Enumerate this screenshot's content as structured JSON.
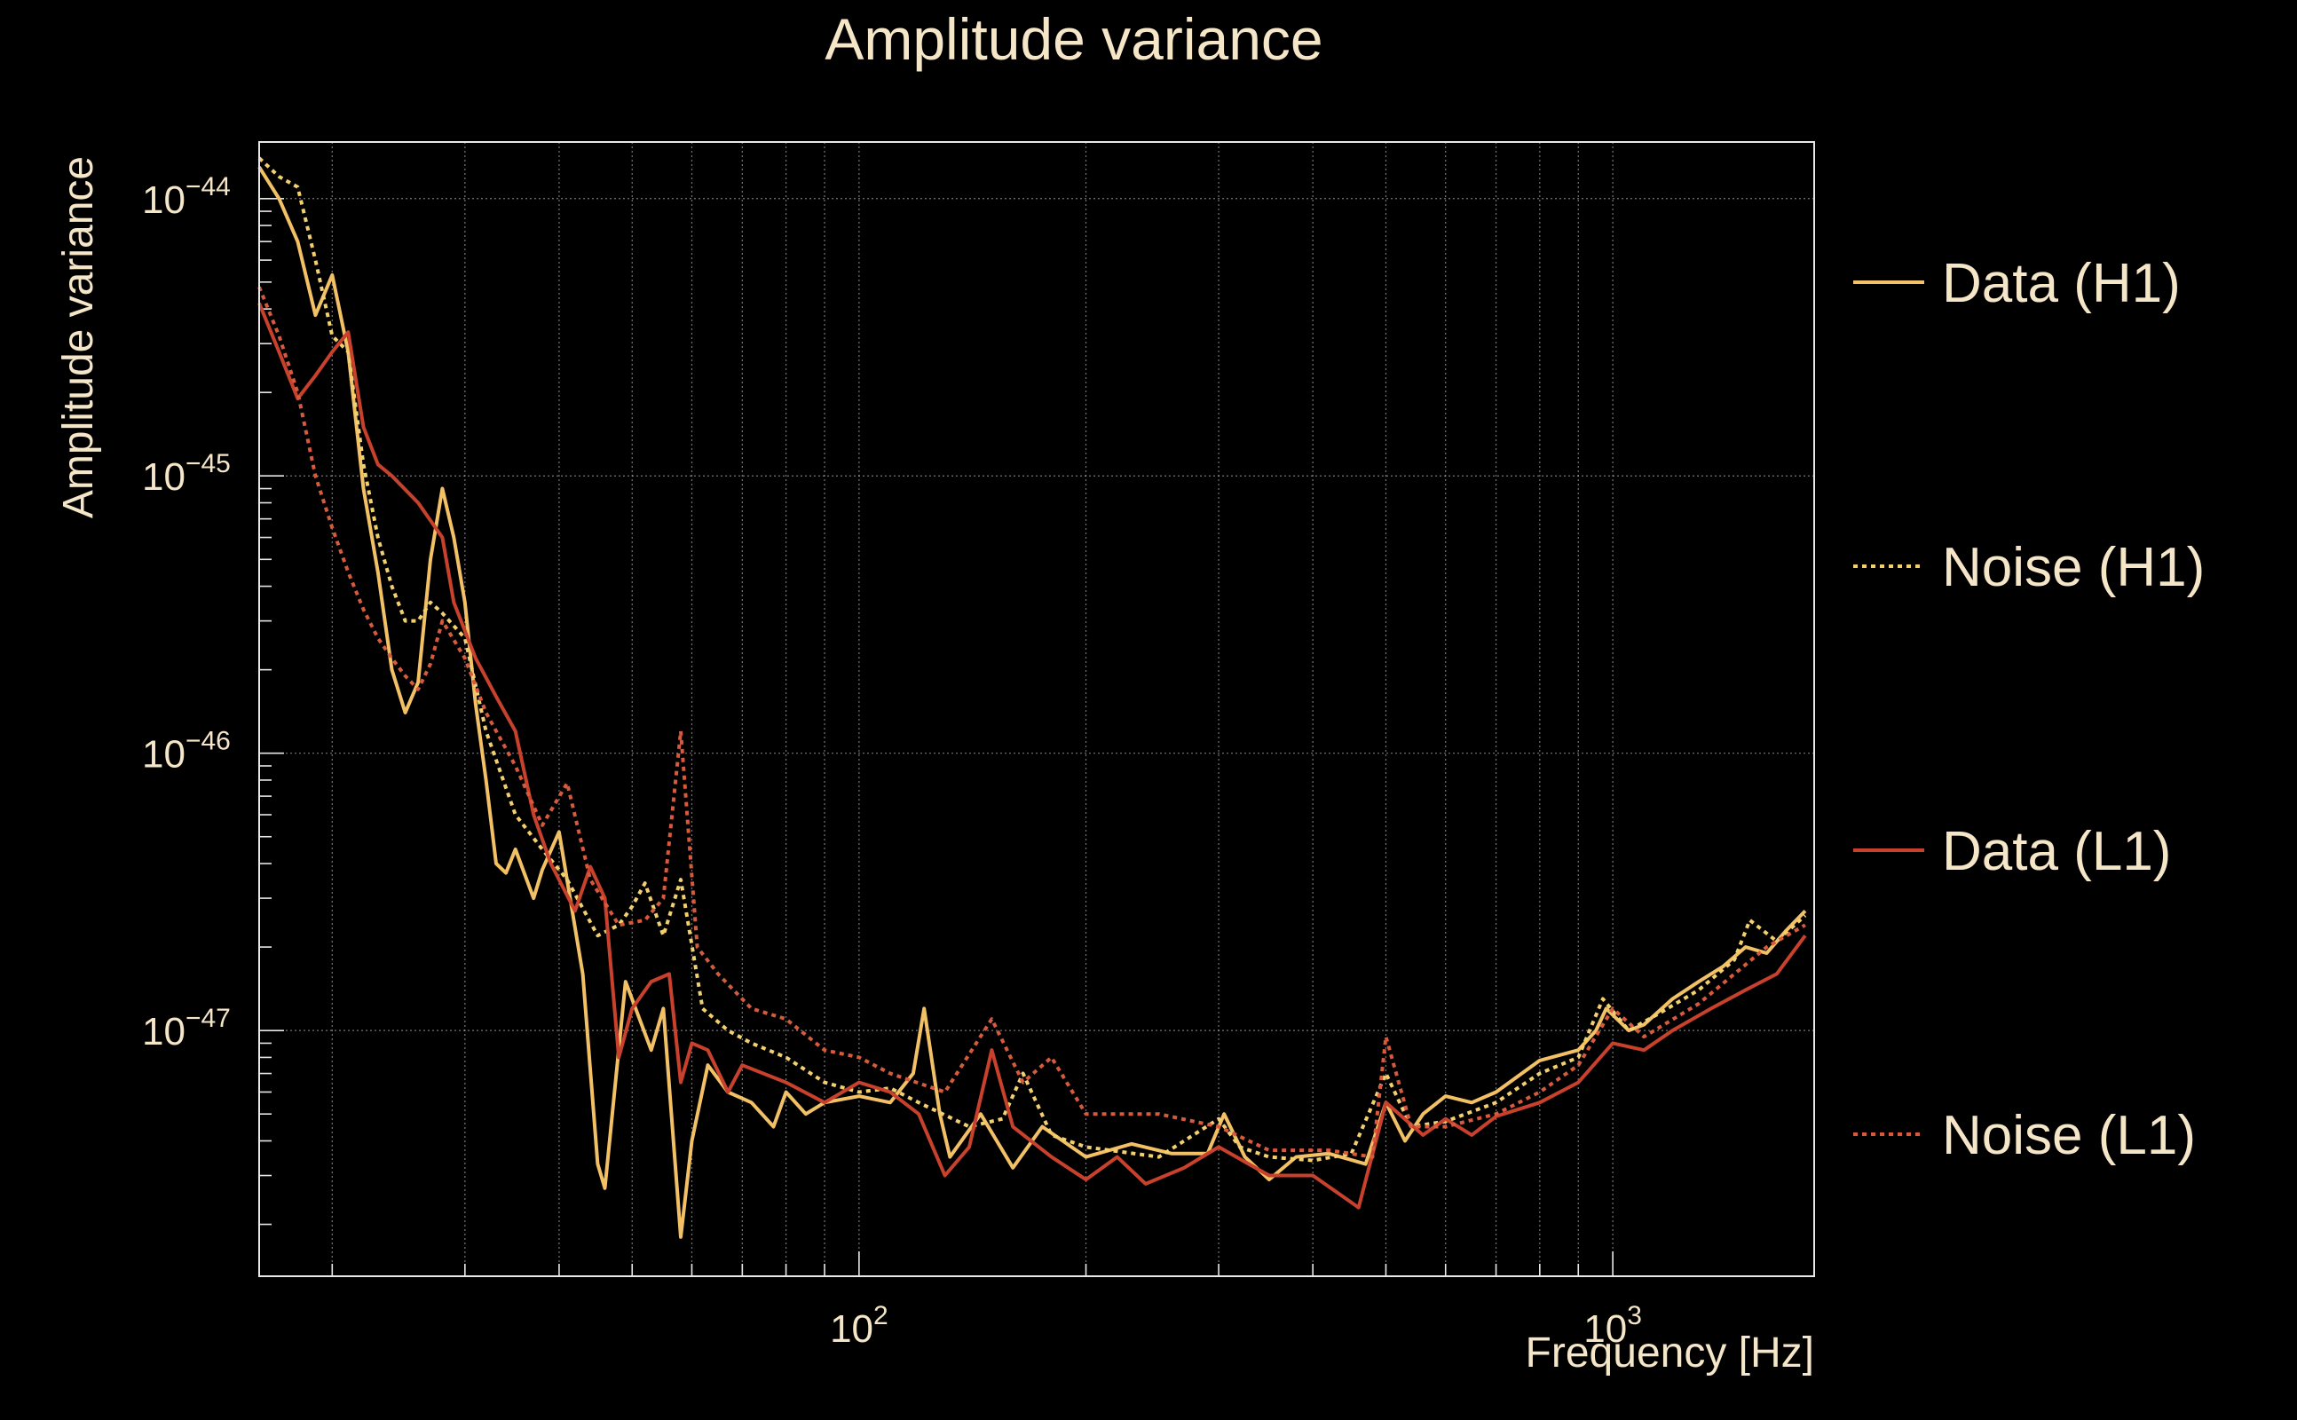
{
  "chart_data": {
    "type": "line",
    "title": "Amplitude variance",
    "xlabel": "Frequency [Hz]",
    "ylabel": "Amplitude variance",
    "x_scale": "log",
    "y_scale": "log",
    "xlim": [
      16,
      1850
    ],
    "ylim": [
      1.3e-48,
      1.6e-44
    ],
    "x_major_ticks": [
      {
        "value": 100,
        "base": "10",
        "exp": "2"
      },
      {
        "value": 1000,
        "base": "10",
        "exp": "3"
      }
    ],
    "y_major_ticks": [
      {
        "value": 1e-44,
        "base": "10",
        "exp": "−44"
      },
      {
        "value": 1e-45,
        "base": "10",
        "exp": "−45"
      },
      {
        "value": 1e-46,
        "base": "10",
        "exp": "−46"
      },
      {
        "value": 1e-47,
        "base": "10",
        "exp": "−47"
      }
    ],
    "grid": true,
    "legend_position": "right",
    "series": [
      {
        "name": "Data (H1)",
        "color": "#f2c065",
        "dash": "solid",
        "points": [
          [
            16,
            1.3e-44
          ],
          [
            17,
            1e-44
          ],
          [
            18,
            7e-45
          ],
          [
            19,
            3.8e-45
          ],
          [
            20,
            5.3e-45
          ],
          [
            21,
            2.8e-45
          ],
          [
            22,
            9e-46
          ],
          [
            23,
            4.5e-46
          ],
          [
            24,
            2e-46
          ],
          [
            25,
            1.4e-46
          ],
          [
            26,
            1.8e-46
          ],
          [
            27,
            5e-46
          ],
          [
            28,
            9e-46
          ],
          [
            29,
            6e-46
          ],
          [
            30,
            3.5e-46
          ],
          [
            31,
            1.5e-46
          ],
          [
            32,
            8e-47
          ],
          [
            33,
            4e-47
          ],
          [
            34,
            3.7e-47
          ],
          [
            35,
            4.5e-47
          ],
          [
            37,
            3e-47
          ],
          [
            38,
            3.8e-47
          ],
          [
            40,
            5.2e-47
          ],
          [
            43,
            1.6e-47
          ],
          [
            45,
            3.3e-48
          ],
          [
            46,
            2.7e-48
          ],
          [
            49,
            1.5e-47
          ],
          [
            53,
            8.5e-48
          ],
          [
            55,
            1.2e-47
          ],
          [
            58,
            1.8e-48
          ],
          [
            60,
            4e-48
          ],
          [
            63,
            7.5e-48
          ],
          [
            67,
            6e-48
          ],
          [
            72,
            5.5e-48
          ],
          [
            77,
            4.5e-48
          ],
          [
            80,
            6e-48
          ],
          [
            85,
            5e-48
          ],
          [
            90,
            5.5e-48
          ],
          [
            100,
            5.8e-48
          ],
          [
            110,
            5.5e-48
          ],
          [
            118,
            7e-48
          ],
          [
            122,
            1.2e-47
          ],
          [
            128,
            5e-48
          ],
          [
            132,
            3.5e-48
          ],
          [
            145,
            5e-48
          ],
          [
            160,
            3.2e-48
          ],
          [
            175,
            4.5e-48
          ],
          [
            200,
            3.5e-48
          ],
          [
            230,
            3.9e-48
          ],
          [
            260,
            3.6e-48
          ],
          [
            290,
            3.6e-48
          ],
          [
            305,
            5e-48
          ],
          [
            325,
            3.5e-48
          ],
          [
            350,
            2.9e-48
          ],
          [
            380,
            3.5e-48
          ],
          [
            420,
            3.6e-48
          ],
          [
            470,
            3.3e-48
          ],
          [
            500,
            5.5e-48
          ],
          [
            530,
            4e-48
          ],
          [
            560,
            5e-48
          ],
          [
            600,
            5.8e-48
          ],
          [
            650,
            5.5e-48
          ],
          [
            700,
            6e-48
          ],
          [
            800,
            7.8e-48
          ],
          [
            900,
            8.5e-48
          ],
          [
            950,
            1e-47
          ],
          [
            980,
            1.2e-47
          ],
          [
            1050,
            1e-47
          ],
          [
            1100,
            1.05e-47
          ],
          [
            1200,
            1.3e-47
          ],
          [
            1300,
            1.5e-47
          ],
          [
            1400,
            1.7e-47
          ],
          [
            1500,
            2e-47
          ],
          [
            1600,
            1.9e-47
          ],
          [
            1700,
            2.3e-47
          ],
          [
            1800,
            2.7e-47
          ]
        ]
      },
      {
        "name": "Noise (H1)",
        "color": "#f2d070",
        "dash": "dotted",
        "points": [
          [
            16,
            1.4e-44
          ],
          [
            17,
            1.2e-44
          ],
          [
            18,
            1.1e-44
          ],
          [
            19,
            6e-45
          ],
          [
            20,
            3.2e-45
          ],
          [
            21,
            2.8e-45
          ],
          [
            22,
            1.1e-45
          ],
          [
            23,
            6e-46
          ],
          [
            24,
            4e-46
          ],
          [
            25,
            3e-46
          ],
          [
            26,
            3e-46
          ],
          [
            27,
            3.5e-46
          ],
          [
            28,
            3.2e-46
          ],
          [
            30,
            2.6e-46
          ],
          [
            32,
            1.2e-46
          ],
          [
            35,
            6e-47
          ],
          [
            38,
            4.5e-47
          ],
          [
            41,
            3.5e-47
          ],
          [
            45,
            2.2e-47
          ],
          [
            48,
            2.4e-47
          ],
          [
            50,
            2.8e-47
          ],
          [
            52,
            3.4e-47
          ],
          [
            55,
            2.2e-47
          ],
          [
            58,
            3.5e-47
          ],
          [
            62,
            1.2e-47
          ],
          [
            67,
            1e-47
          ],
          [
            72,
            9e-48
          ],
          [
            80,
            8e-48
          ],
          [
            90,
            6.5e-48
          ],
          [
            100,
            6e-48
          ],
          [
            110,
            6.2e-48
          ],
          [
            120,
            5.5e-48
          ],
          [
            140,
            4.5e-48
          ],
          [
            155,
            4.8e-48
          ],
          [
            165,
            7e-48
          ],
          [
            180,
            4.2e-48
          ],
          [
            200,
            3.8e-48
          ],
          [
            250,
            3.5e-48
          ],
          [
            300,
            4.8e-48
          ],
          [
            320,
            3.8e-48
          ],
          [
            350,
            3.5e-48
          ],
          [
            400,
            3.4e-48
          ],
          [
            450,
            3.6e-48
          ],
          [
            500,
            7e-48
          ],
          [
            540,
            4.5e-48
          ],
          [
            600,
            4.7e-48
          ],
          [
            700,
            5.5e-48
          ],
          [
            800,
            7e-48
          ],
          [
            900,
            8e-48
          ],
          [
            970,
            1.3e-47
          ],
          [
            1050,
            1e-47
          ],
          [
            1150,
            1.15e-47
          ],
          [
            1300,
            1.4e-47
          ],
          [
            1450,
            1.8e-47
          ],
          [
            1520,
            2.5e-47
          ],
          [
            1650,
            2.1e-47
          ],
          [
            1800,
            2.6e-47
          ]
        ]
      },
      {
        "name": "Data (L1)",
        "color": "#c8412c",
        "dash": "solid",
        "points": [
          [
            16,
            4.2e-45
          ],
          [
            17,
            2.8e-45
          ],
          [
            18,
            1.9e-45
          ],
          [
            19,
            2.3e-45
          ],
          [
            20,
            2.8e-45
          ],
          [
            21,
            3.3e-45
          ],
          [
            22,
            1.5e-45
          ],
          [
            23,
            1.1e-45
          ],
          [
            24,
            1e-45
          ],
          [
            26,
            8e-46
          ],
          [
            28,
            6e-46
          ],
          [
            29,
            3.5e-46
          ],
          [
            31,
            2.2e-46
          ],
          [
            33,
            1.6e-46
          ],
          [
            35,
            1.2e-46
          ],
          [
            37,
            6e-47
          ],
          [
            39,
            4e-47
          ],
          [
            42,
            2.7e-47
          ],
          [
            44,
            3.9e-47
          ],
          [
            46,
            3e-47
          ],
          [
            48,
            8e-48
          ],
          [
            50,
            1.2e-47
          ],
          [
            53,
            1.5e-47
          ],
          [
            56,
            1.6e-47
          ],
          [
            58,
            6.5e-48
          ],
          [
            60,
            9e-48
          ],
          [
            63,
            8.5e-48
          ],
          [
            67,
            6e-48
          ],
          [
            70,
            7.5e-48
          ],
          [
            80,
            6.5e-48
          ],
          [
            90,
            5.5e-48
          ],
          [
            100,
            6.5e-48
          ],
          [
            110,
            6e-48
          ],
          [
            120,
            5e-48
          ],
          [
            130,
            3e-48
          ],
          [
            140,
            3.8e-48
          ],
          [
            150,
            8.5e-48
          ],
          [
            160,
            4.5e-48
          ],
          [
            180,
            3.5e-48
          ],
          [
            200,
            2.9e-48
          ],
          [
            220,
            3.5e-48
          ],
          [
            240,
            2.8e-48
          ],
          [
            270,
            3.2e-48
          ],
          [
            300,
            3.8e-48
          ],
          [
            350,
            3e-48
          ],
          [
            400,
            3e-48
          ],
          [
            460,
            2.3e-48
          ],
          [
            500,
            5.5e-48
          ],
          [
            560,
            4.2e-48
          ],
          [
            600,
            4.8e-48
          ],
          [
            650,
            4.2e-48
          ],
          [
            700,
            4.9e-48
          ],
          [
            800,
            5.5e-48
          ],
          [
            900,
            6.5e-48
          ],
          [
            1000,
            9e-48
          ],
          [
            1100,
            8.5e-48
          ],
          [
            1200,
            1e-47
          ],
          [
            1350,
            1.2e-47
          ],
          [
            1500,
            1.4e-47
          ],
          [
            1650,
            1.6e-47
          ],
          [
            1800,
            2.2e-47
          ]
        ]
      },
      {
        "name": "Noise (L1)",
        "color": "#d65a3d",
        "dash": "dotted",
        "points": [
          [
            16,
            4.8e-45
          ],
          [
            17,
            3.2e-45
          ],
          [
            18,
            2e-45
          ],
          [
            19,
            1e-45
          ],
          [
            20,
            6.5e-46
          ],
          [
            21,
            4.5e-46
          ],
          [
            22,
            3.3e-46
          ],
          [
            23,
            2.6e-46
          ],
          [
            24,
            2.2e-46
          ],
          [
            25,
            1.9e-46
          ],
          [
            26,
            1.7e-46
          ],
          [
            27,
            2.1e-46
          ],
          [
            28,
            3e-46
          ],
          [
            30,
            2.2e-46
          ],
          [
            32,
            1.4e-46
          ],
          [
            35,
            9e-47
          ],
          [
            38,
            5.5e-47
          ],
          [
            41,
            7.8e-47
          ],
          [
            44,
            3.5e-47
          ],
          [
            48,
            2.4e-47
          ],
          [
            52,
            2.5e-47
          ],
          [
            55,
            3e-47
          ],
          [
            58,
            1.2e-46
          ],
          [
            61,
            2e-47
          ],
          [
            65,
            1.6e-47
          ],
          [
            72,
            1.2e-47
          ],
          [
            80,
            1.1e-47
          ],
          [
            90,
            8.5e-48
          ],
          [
            100,
            8e-48
          ],
          [
            110,
            7e-48
          ],
          [
            130,
            6e-48
          ],
          [
            150,
            1.1e-47
          ],
          [
            165,
            6.5e-48
          ],
          [
            180,
            8e-48
          ],
          [
            200,
            5e-48
          ],
          [
            250,
            5e-48
          ],
          [
            300,
            4.5e-48
          ],
          [
            350,
            3.7e-48
          ],
          [
            420,
            3.7e-48
          ],
          [
            480,
            3.5e-48
          ],
          [
            500,
            9.5e-48
          ],
          [
            540,
            4.5e-48
          ],
          [
            600,
            4.5e-48
          ],
          [
            700,
            5e-48
          ],
          [
            800,
            6e-48
          ],
          [
            900,
            7.5e-48
          ],
          [
            1000,
            1.2e-47
          ],
          [
            1100,
            9.5e-48
          ],
          [
            1300,
            1.25e-47
          ],
          [
            1450,
            1.6e-47
          ],
          [
            1600,
            2e-47
          ],
          [
            1800,
            2.4e-47
          ]
        ]
      }
    ]
  }
}
